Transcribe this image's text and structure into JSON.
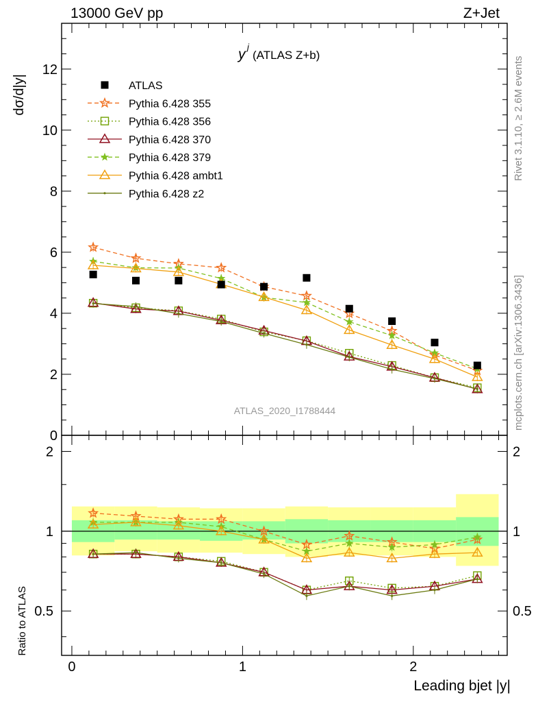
{
  "header": {
    "left": "13000 GeV pp",
    "right": "Z+Jet"
  },
  "side_labels": {
    "rivet": "Rivet 3.1.10, ≥ 2.6M events",
    "mcplots": "mcplots.cern.ch [arXiv:1306.3436]"
  },
  "chart_data": [
    {
      "type": "scatter",
      "title": "y",
      "title_superscript": "j",
      "title_suffix": "(ATLAS Z+b)",
      "ylabel": "dσ/d|y|",
      "ylim": [
        0,
        13.5
      ],
      "xlim": [
        -0.06,
        2.55
      ],
      "yticks": [
        "0",
        "2",
        "4",
        "6",
        "8",
        "10",
        "12"
      ],
      "watermark": "ATLAS_2020_I1788444",
      "legend_position": "top-left",
      "x": [
        0.125,
        0.375,
        0.625,
        0.875,
        1.125,
        1.375,
        1.625,
        1.875,
        2.125,
        2.375
      ],
      "series": [
        {
          "name": "ATLAS",
          "color": "#000000",
          "marker": "square",
          "values": [
            5.27,
            5.07,
            5.07,
            4.94,
            4.87,
            5.16,
            4.15,
            3.74,
            3.04,
            2.29
          ]
        },
        {
          "name": "Pythia 6.428 355",
          "color": "#f07020",
          "marker": "star",
          "dash": "6,4",
          "values": [
            6.16,
            5.8,
            5.62,
            5.49,
            4.87,
            4.57,
            3.99,
            3.42,
            2.63,
            2.12
          ]
        },
        {
          "name": "Pythia 6.428 356",
          "color": "#70a000",
          "marker": "open-square",
          "dash": "2,3",
          "values": [
            4.33,
            4.18,
            4.08,
            3.81,
            3.39,
            3.1,
            2.69,
            2.29,
            1.89,
            1.56
          ]
        },
        {
          "name": "Pythia 6.428 370",
          "color": "#901020",
          "marker": "open-triangle",
          "dash": "",
          "values": [
            4.34,
            4.14,
            4.07,
            3.77,
            3.43,
            3.09,
            2.58,
            2.25,
            1.89,
            1.51
          ]
        },
        {
          "name": "Pythia 6.428 379",
          "color": "#80c020",
          "marker": "star-small",
          "dash": "6,4",
          "values": [
            5.7,
            5.49,
            5.48,
            5.14,
            4.52,
            4.35,
            3.72,
            3.27,
            2.7,
            2.18
          ]
        },
        {
          "name": "Pythia 6.428 ambt1",
          "color": "#f0a010",
          "marker": "open-triangle",
          "dash": "",
          "values": [
            5.57,
            5.47,
            5.35,
            4.95,
            4.53,
            4.1,
            3.45,
            2.96,
            2.5,
            1.91
          ]
        },
        {
          "name": "Pythia 6.428 z2",
          "color": "#6a7a10",
          "marker": "dot",
          "dash": "",
          "values": [
            4.32,
            4.22,
            3.99,
            3.73,
            3.34,
            2.97,
            2.56,
            2.16,
            1.86,
            1.52
          ]
        }
      ]
    },
    {
      "type": "scatter",
      "ylabel": "Ratio to ATLAS",
      "xlabel": "Leading bjet |y|",
      "ylim": [
        0.34,
        2.3
      ],
      "xlim": [
        -0.06,
        2.55
      ],
      "yticks": [
        "0.5",
        "1",
        "2"
      ],
      "xticks": [
        "0",
        "1",
        "2"
      ],
      "x": [
        0.125,
        0.375,
        0.625,
        0.875,
        1.125,
        1.375,
        1.625,
        1.875,
        2.125,
        2.375
      ],
      "bin_edges": [
        0,
        0.25,
        0.5,
        0.75,
        1.0,
        1.25,
        1.5,
        1.75,
        2.0,
        2.25,
        2.5
      ],
      "band_inner": {
        "color": "#99ff99",
        "lo": [
          0.91,
          0.93,
          0.93,
          0.92,
          0.93,
          0.9,
          0.91,
          0.91,
          0.91,
          0.88
        ],
        "hi": [
          1.1,
          1.1,
          1.09,
          1.09,
          1.09,
          1.11,
          1.1,
          1.1,
          1.1,
          1.13
        ]
      },
      "band_outer": {
        "color": "#ffff99",
        "lo": [
          0.81,
          0.84,
          0.83,
          0.83,
          0.82,
          0.8,
          0.81,
          0.81,
          0.8,
          0.74
        ],
        "hi": [
          1.24,
          1.24,
          1.23,
          1.22,
          1.22,
          1.24,
          1.23,
          1.23,
          1.23,
          1.38
        ]
      },
      "series": [
        {
          "name": "Pythia 6.428 355",
          "color": "#f07020",
          "marker": "star",
          "dash": "6,4",
          "values": [
            1.17,
            1.14,
            1.11,
            1.11,
            1.0,
            0.89,
            0.96,
            0.91,
            0.86,
            0.93
          ]
        },
        {
          "name": "Pythia 6.428 356",
          "color": "#70a000",
          "marker": "open-square",
          "dash": "2,3",
          "values": [
            0.82,
            0.82,
            0.8,
            0.77,
            0.7,
            0.6,
            0.65,
            0.61,
            0.62,
            0.68
          ]
        },
        {
          "name": "Pythia 6.428 370",
          "color": "#901020",
          "marker": "open-triangle",
          "dash": "",
          "values": [
            0.82,
            0.82,
            0.8,
            0.76,
            0.7,
            0.6,
            0.62,
            0.6,
            0.62,
            0.66
          ]
        },
        {
          "name": "Pythia 6.428 379",
          "color": "#80c020",
          "marker": "star-small",
          "dash": "6,4",
          "values": [
            1.08,
            1.08,
            1.08,
            1.04,
            0.93,
            0.84,
            0.9,
            0.87,
            0.89,
            0.95
          ]
        },
        {
          "name": "Pythia 6.428 ambt1",
          "color": "#f0a010",
          "marker": "open-triangle",
          "dash": "",
          "values": [
            1.06,
            1.08,
            1.05,
            1.0,
            0.93,
            0.79,
            0.83,
            0.79,
            0.82,
            0.83
          ]
        },
        {
          "name": "Pythia 6.428 z2",
          "color": "#6a7a10",
          "marker": "dot",
          "dash": "",
          "values": [
            0.82,
            0.83,
            0.79,
            0.76,
            0.69,
            0.57,
            0.62,
            0.57,
            0.6,
            0.66
          ]
        }
      ]
    }
  ]
}
